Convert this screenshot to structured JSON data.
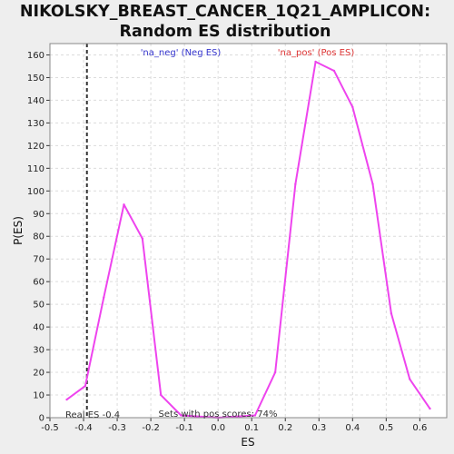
{
  "colors": {
    "background": "#eeeeee",
    "plot_background": "#ffffff",
    "series_line": "#ee44ee",
    "neg_label": "#3333cc",
    "pos_label": "#dd3333",
    "real_es_line": "#333333"
  },
  "chart_data": {
    "type": "line",
    "title": "NIKOLSKY_BREAST_CANCER_1Q21_AMPLICON:",
    "subtitle": "Random ES distribution",
    "xlabel": "ES",
    "ylabel": "P(ES)",
    "xlim": [
      -0.5,
      0.68
    ],
    "ylim": [
      0,
      165
    ],
    "grid": true,
    "x_ticks": [
      -0.5,
      -0.4,
      -0.3,
      -0.2,
      -0.1,
      0.0,
      0.1,
      0.2,
      0.3,
      0.4,
      0.5,
      0.6
    ],
    "x_tick_labels": [
      "-0.5",
      "-0.4",
      "-0.3",
      "-0.2",
      "-0.1",
      "0.0",
      "0.1",
      "0.2",
      "0.3",
      "0.4",
      "0.5",
      "0.6"
    ],
    "y_ticks": [
      0,
      10,
      20,
      30,
      40,
      50,
      60,
      70,
      80,
      90,
      100,
      110,
      120,
      130,
      140,
      150,
      160
    ],
    "y_tick_labels": [
      "0",
      "10",
      "20",
      "30",
      "40",
      "50",
      "60",
      "70",
      "80",
      "90",
      "100",
      "110",
      "120",
      "130",
      "140",
      "150",
      "160"
    ],
    "series": [
      {
        "x": [
          -0.45,
          -0.395,
          -0.34,
          -0.28,
          -0.225,
          -0.17,
          -0.11,
          0.0,
          0.11,
          0.17,
          0.23,
          0.29,
          0.345,
          0.4,
          0.46,
          0.515,
          0.57,
          0.63
        ],
        "y": [
          8,
          14,
          53,
          94,
          79,
          10,
          1,
          0,
          1,
          20,
          103,
          157,
          153,
          137,
          103,
          46,
          17,
          4
        ]
      }
    ],
    "real_es": {
      "x": -0.39,
      "label": "Real ES -0.4"
    },
    "annotations": {
      "neg_label": "'na_neg' (Neg ES)",
      "pos_label": "'na_pos' (Pos ES)",
      "pos_scores": "Sets with pos scores: 74%"
    }
  }
}
